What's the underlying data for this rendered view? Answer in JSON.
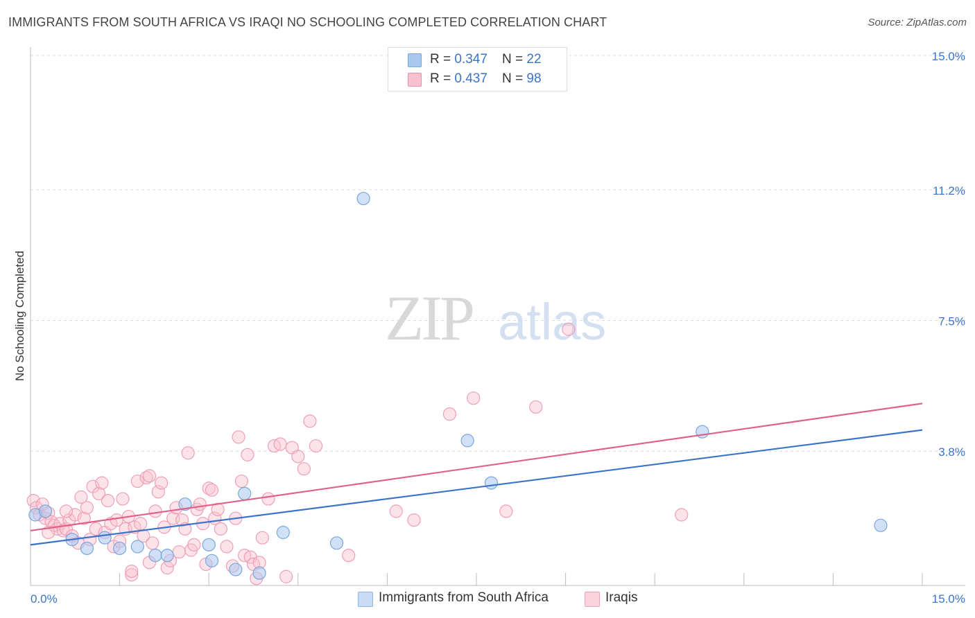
{
  "title": "IMMIGRANTS FROM SOUTH AFRICA VS IRAQI NO SCHOOLING COMPLETED CORRELATION CHART",
  "source": "Source: ZipAtlas.com",
  "watermark": {
    "zip": "ZIP",
    "atlas": "atlas"
  },
  "legend": {
    "r_label": "R = ",
    "n_label": "N = ",
    "rows": [
      {
        "r": "0.347",
        "n": "22",
        "color": "#a9c8f0",
        "border": "#7aa6dc"
      },
      {
        "r": "0.437",
        "n": "98",
        "color": "#f8c0d0",
        "border": "#e890a8"
      }
    ]
  },
  "bottom_legend": [
    {
      "label": "Immigrants from South Africa",
      "color": "#c9dcf5",
      "border": "#8fb3e3"
    },
    {
      "label": "Iraqis",
      "color": "#fbd3df",
      "border": "#ee9fb6"
    }
  ],
  "chart_data": {
    "type": "scatter",
    "title": "IMMIGRANTS FROM SOUTH AFRICA VS IRAQI NO SCHOOLING COMPLETED CORRELATION CHART",
    "xlabel": "",
    "ylabel": "No Schooling Completed",
    "xlim": [
      0,
      15
    ],
    "ylim": [
      0,
      15
    ],
    "x_tick_labels": [
      "0.0%",
      "15.0%"
    ],
    "y_ticks": [
      3.8,
      7.5,
      11.2,
      15.0
    ],
    "y_tick_labels": [
      "3.8%",
      "7.5%",
      "11.2%",
      "15.0%"
    ],
    "legend_position": "top-center",
    "grid": true,
    "series": [
      {
        "name": "Immigrants from South Africa",
        "color": "#7aa6dc",
        "fill": "rgba(169,200,240,0.55)",
        "line_color": "#3a73c8",
        "trend": {
          "x": [
            0,
            15
          ],
          "y": [
            1.15,
            4.4
          ]
        },
        "points": [
          [
            0.08,
            2.0
          ],
          [
            0.25,
            2.1
          ],
          [
            0.7,
            1.3
          ],
          [
            0.95,
            1.05
          ],
          [
            1.25,
            1.35
          ],
          [
            1.5,
            1.05
          ],
          [
            1.8,
            1.1
          ],
          [
            2.1,
            0.85
          ],
          [
            2.3,
            0.85
          ],
          [
            2.6,
            2.3
          ],
          [
            3.0,
            1.15
          ],
          [
            3.05,
            0.7
          ],
          [
            3.45,
            0.45
          ],
          [
            3.6,
            2.6
          ],
          [
            3.85,
            0.35
          ],
          [
            4.25,
            1.5
          ],
          [
            5.15,
            1.2
          ],
          [
            5.6,
            10.95
          ],
          [
            7.35,
            4.1
          ],
          [
            7.75,
            2.9
          ],
          [
            11.3,
            4.35
          ],
          [
            14.3,
            1.7
          ]
        ]
      },
      {
        "name": "Iraqis",
        "color": "#ee9fb6",
        "fill": "rgba(248,192,208,0.45)",
        "line_color": "#e0608a",
        "trend": {
          "x": [
            0,
            15
          ],
          "y": [
            1.55,
            5.15
          ]
        },
        "points": [
          [
            0.05,
            2.4
          ],
          [
            0.1,
            2.2
          ],
          [
            0.15,
            2.0
          ],
          [
            0.2,
            2.3
          ],
          [
            0.25,
            1.9
          ],
          [
            0.3,
            2.05
          ],
          [
            0.35,
            1.8
          ],
          [
            0.4,
            1.7
          ],
          [
            0.45,
            1.6
          ],
          [
            0.5,
            1.75
          ],
          [
            0.55,
            1.55
          ],
          [
            0.6,
            1.6
          ],
          [
            0.65,
            1.85
          ],
          [
            0.7,
            1.4
          ],
          [
            0.75,
            2.0
          ],
          [
            0.8,
            1.2
          ],
          [
            0.85,
            2.5
          ],
          [
            0.9,
            1.9
          ],
          [
            0.95,
            2.2
          ],
          [
            1.0,
            1.3
          ],
          [
            1.05,
            2.8
          ],
          [
            1.1,
            1.6
          ],
          [
            1.15,
            2.6
          ],
          [
            1.2,
            2.9
          ],
          [
            1.25,
            1.5
          ],
          [
            1.3,
            2.4
          ],
          [
            1.35,
            1.75
          ],
          [
            1.4,
            1.1
          ],
          [
            1.45,
            1.85
          ],
          [
            1.5,
            1.25
          ],
          [
            1.55,
            2.45
          ],
          [
            1.6,
            1.6
          ],
          [
            1.65,
            1.95
          ],
          [
            1.7,
            0.3
          ],
          [
            1.75,
            1.65
          ],
          [
            1.8,
            2.95
          ],
          [
            1.85,
            1.75
          ],
          [
            1.9,
            1.4
          ],
          [
            1.95,
            3.05
          ],
          [
            2.0,
            3.1
          ],
          [
            2.05,
            1.2
          ],
          [
            2.1,
            2.1
          ],
          [
            2.15,
            2.65
          ],
          [
            2.2,
            2.9
          ],
          [
            2.25,
            1.65
          ],
          [
            2.3,
            0.5
          ],
          [
            2.35,
            0.7
          ],
          [
            2.4,
            1.9
          ],
          [
            2.45,
            2.2
          ],
          [
            2.5,
            0.95
          ],
          [
            2.55,
            1.85
          ],
          [
            2.6,
            1.6
          ],
          [
            2.65,
            3.75
          ],
          [
            2.7,
            1.0
          ],
          [
            2.75,
            1.15
          ],
          [
            2.8,
            2.15
          ],
          [
            2.85,
            2.3
          ],
          [
            2.9,
            1.75
          ],
          [
            2.95,
            0.6
          ],
          [
            3.0,
            2.75
          ],
          [
            3.05,
            2.7
          ],
          [
            3.1,
            1.9
          ],
          [
            3.15,
            2.15
          ],
          [
            3.2,
            1.6
          ],
          [
            3.3,
            1.1
          ],
          [
            3.4,
            0.55
          ],
          [
            3.45,
            1.9
          ],
          [
            3.5,
            4.2
          ],
          [
            3.55,
            2.95
          ],
          [
            3.6,
            0.85
          ],
          [
            3.65,
            3.7
          ],
          [
            3.7,
            0.8
          ],
          [
            3.75,
            0.6
          ],
          [
            3.8,
            0.2
          ],
          [
            3.85,
            0.65
          ],
          [
            3.9,
            1.35
          ],
          [
            4.0,
            2.45
          ],
          [
            4.1,
            3.95
          ],
          [
            4.2,
            4.0
          ],
          [
            4.3,
            0.25
          ],
          [
            4.4,
            3.9
          ],
          [
            4.5,
            3.65
          ],
          [
            4.6,
            3.3
          ],
          [
            4.7,
            4.65
          ],
          [
            4.8,
            3.95
          ],
          [
            5.35,
            0.85
          ],
          [
            6.15,
            2.1
          ],
          [
            6.45,
            1.85
          ],
          [
            7.05,
            4.85
          ],
          [
            7.45,
            5.3
          ],
          [
            8.0,
            2.1
          ],
          [
            8.5,
            5.05
          ],
          [
            9.05,
            7.25
          ],
          [
            10.95,
            2.0
          ],
          [
            0.3,
            1.5
          ],
          [
            0.6,
            2.1
          ],
          [
            1.7,
            0.4
          ],
          [
            2.0,
            0.65
          ]
        ]
      }
    ]
  }
}
